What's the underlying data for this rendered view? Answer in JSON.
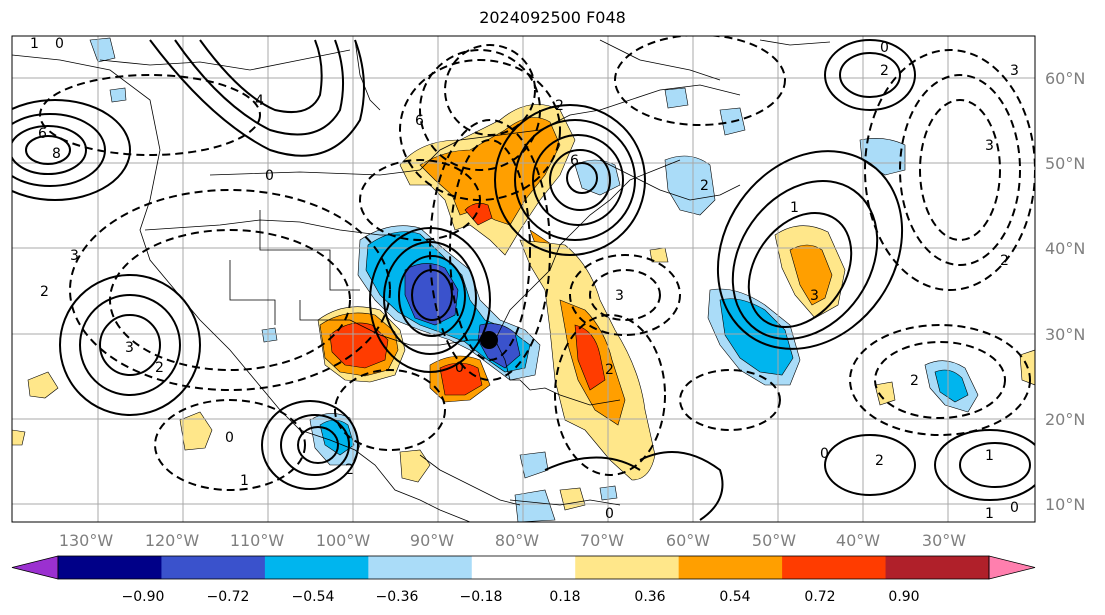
{
  "title": "2024092500 F048",
  "map": {
    "lon_labels": [
      "130°W",
      "120°W",
      "110°W",
      "100°W",
      "90°W",
      "80°W",
      "70°W",
      "60°W",
      "50°W",
      "40°W",
      "30°W"
    ],
    "lat_labels": [
      "60°N",
      "50°N",
      "40°N",
      "30°N",
      "20°N",
      "10°N"
    ],
    "contour_labels": [
      "0",
      "1",
      "2",
      "3",
      "4",
      "6",
      "8"
    ],
    "marker": "storm-center"
  },
  "colorbar": {
    "ticks": [
      "−0.90",
      "−0.72",
      "−0.54",
      "−0.36",
      "−0.18",
      "0.18",
      "0.36",
      "0.54",
      "0.72",
      "0.90"
    ],
    "colors": [
      "#9b30d0",
      "#000088",
      "#3a52cc",
      "#00b5ee",
      "#aadcf8",
      "#ffffff",
      "#ffe78a",
      "#ff9f00",
      "#ff3c00",
      "#b0202a",
      "#ff7fae"
    ]
  },
  "colors": {
    "fill_pos_light": "#ffe78a",
    "fill_pos_mid": "#ff9f00",
    "fill_pos_strong": "#ff3c00",
    "fill_neg_light": "#aadcf8",
    "fill_neg_mid": "#00b5ee",
    "fill_neg_strong": "#3a52cc",
    "axis_label": "#7f7f7f"
  }
}
